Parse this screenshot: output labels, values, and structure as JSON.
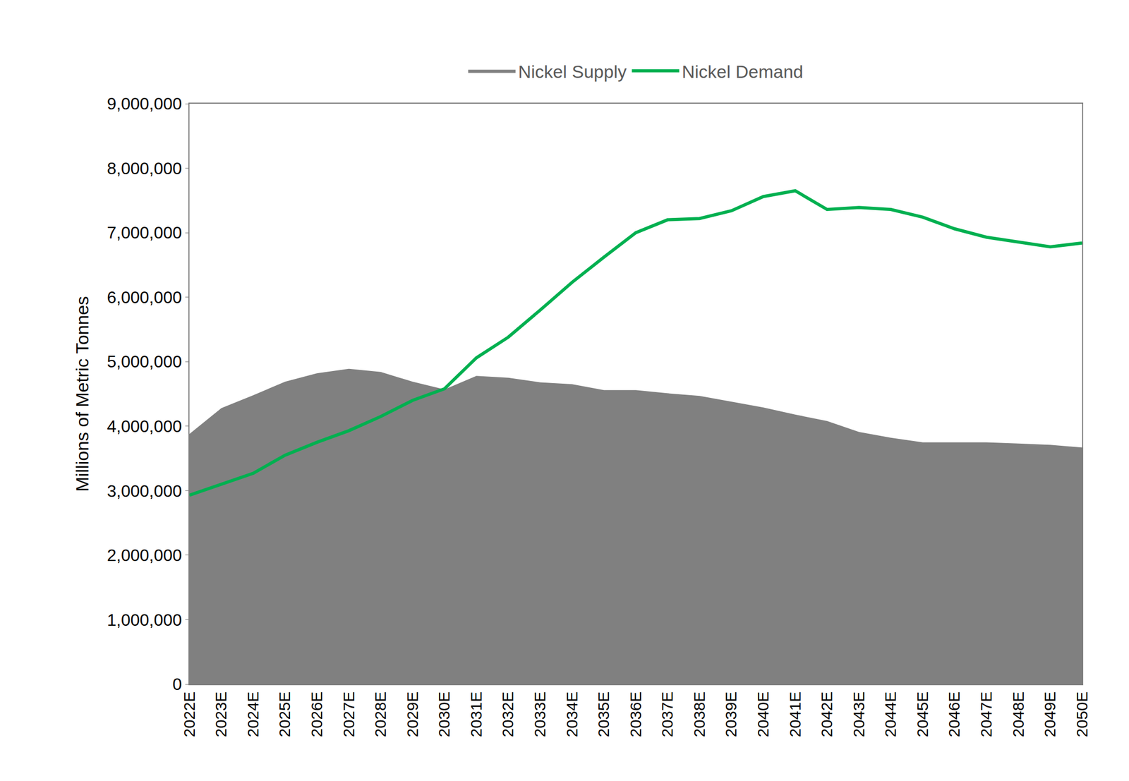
{
  "chart_data": {
    "type": "line",
    "y_label": "Millions of Metric Tonnes",
    "categories": [
      "2022E",
      "2023E",
      "2024E",
      "2025E",
      "2026E",
      "2027E",
      "2028E",
      "2029E",
      "2030E",
      "2031E",
      "2032E",
      "2033E",
      "2034E",
      "2035E",
      "2036E",
      "2037E",
      "2038E",
      "2039E",
      "2040E",
      "2041E",
      "2042E",
      "2043E",
      "2044E",
      "2045E",
      "2046E",
      "2047E",
      "2048E",
      "2049E",
      "2050E"
    ],
    "series": [
      {
        "name": "Nickel Supply",
        "type": "area",
        "color": "#808080",
        "values": [
          3880000,
          4280000,
          4480000,
          4690000,
          4820000,
          4890000,
          4840000,
          4690000,
          4570000,
          4780000,
          4750000,
          4680000,
          4650000,
          4560000,
          4560000,
          4510000,
          4470000,
          4380000,
          4290000,
          4180000,
          4080000,
          3910000,
          3820000,
          3750000,
          3750000,
          3750000,
          3730000,
          3710000,
          3670000
        ]
      },
      {
        "name": "Nickel Demand",
        "type": "line",
        "color": "#00b050",
        "values": [
          2930000,
          3100000,
          3270000,
          3550000,
          3750000,
          3930000,
          4150000,
          4400000,
          4580000,
          5060000,
          5380000,
          5800000,
          6230000,
          6620000,
          7000000,
          7200000,
          7220000,
          7340000,
          7560000,
          7650000,
          7360000,
          7390000,
          7360000,
          7240000,
          7060000,
          6930000,
          6860000,
          6780000,
          6840000
        ]
      }
    ],
    "ylim": [
      0,
      9000000
    ],
    "yticks": [
      0,
      {
        "value": 1000000,
        "label": "1,000,000"
      },
      {
        "value": 2000000,
        "label": "2,000,000"
      },
      {
        "value": 3000000,
        "label": "3,000,000"
      },
      {
        "value": 4000000,
        "label": "4,000,000"
      },
      {
        "value": 5000000,
        "label": "5,000,000"
      },
      {
        "value": 6000000,
        "label": "6,000,000"
      },
      {
        "value": 7000000,
        "label": "7,000,000"
      },
      {
        "value": 8000000,
        "label": "8,000,000"
      },
      {
        "value": 9000000,
        "label": "9,000,000"
      }
    ],
    "grid": false,
    "legend": "top"
  }
}
